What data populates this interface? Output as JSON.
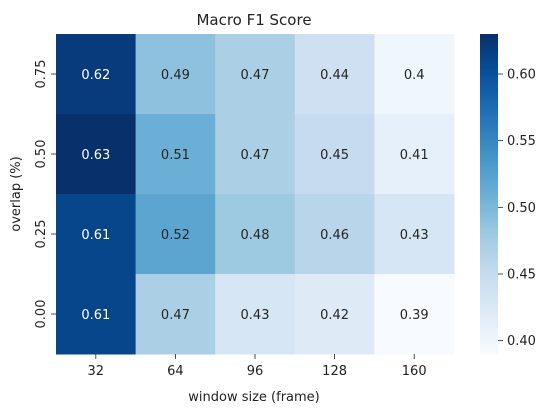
{
  "chart_data": {
    "type": "heatmap",
    "title": "Macro F1 Score",
    "xlabel": "window size (frame)",
    "ylabel": "overlap (%)",
    "x_categories": [
      "32",
      "64",
      "96",
      "128",
      "160"
    ],
    "y_categories": [
      "0.75",
      "0.50",
      "0.25",
      "0.00"
    ],
    "values": [
      [
        0.62,
        0.49,
        0.47,
        0.44,
        0.4
      ],
      [
        0.63,
        0.51,
        0.47,
        0.45,
        0.41
      ],
      [
        0.61,
        0.52,
        0.48,
        0.46,
        0.43
      ],
      [
        0.61,
        0.47,
        0.43,
        0.42,
        0.39
      ]
    ],
    "color_range": [
      0.39,
      0.63
    ],
    "colormap": "Blues",
    "colorbar_ticks": [
      "0.40",
      "0.45",
      "0.50",
      "0.55",
      "0.60"
    ],
    "colorbar_tick_values": [
      0.4,
      0.45,
      0.5,
      0.55,
      0.6
    ],
    "annotate": true,
    "grid": false
  }
}
